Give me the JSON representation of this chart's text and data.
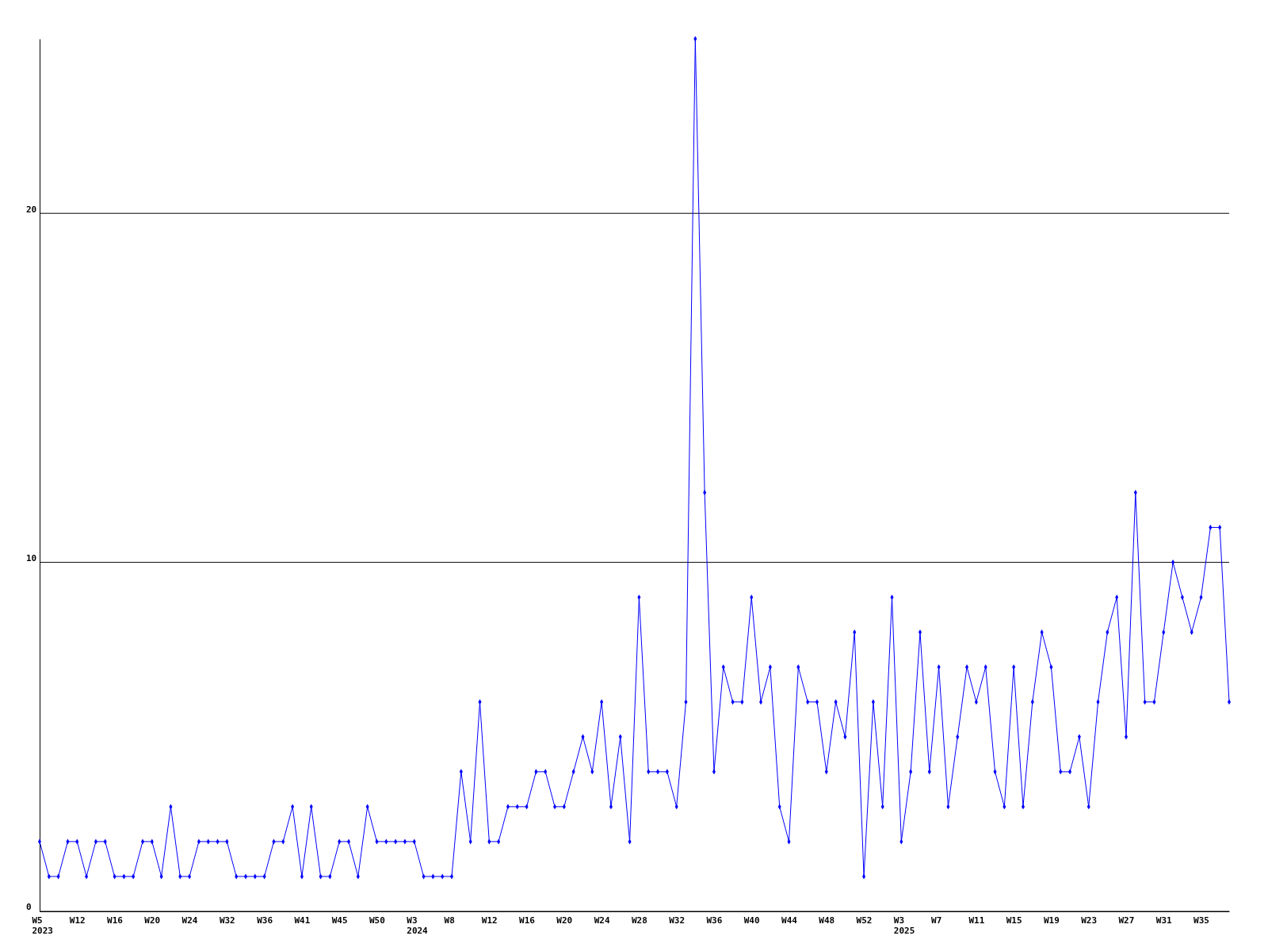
{
  "chart_data": {
    "type": "line",
    "categories": [
      "W5\n2023",
      null,
      null,
      null,
      "W12",
      null,
      null,
      null,
      "W16",
      null,
      null,
      null,
      "W20",
      null,
      null,
      null,
      "W24",
      null,
      null,
      null,
      "W32",
      null,
      null,
      null,
      "W36",
      null,
      null,
      null,
      "W41",
      null,
      null,
      null,
      "W45",
      null,
      null,
      null,
      "W50",
      null,
      null,
      null,
      "W3\n2024",
      null,
      null,
      null,
      "W8",
      null,
      null,
      null,
      "W12",
      null,
      null,
      null,
      "W16",
      null,
      null,
      null,
      "W20",
      null,
      null,
      null,
      "W24",
      null,
      null,
      null,
      "W28",
      null,
      null,
      null,
      "W32",
      null,
      null,
      null,
      "W36",
      null,
      null,
      null,
      "W40",
      null,
      null,
      null,
      "W44",
      null,
      null,
      null,
      "W48",
      null,
      null,
      null,
      "W52",
      null,
      null,
      null,
      "W3\n2025",
      null,
      null,
      null,
      "W7",
      null,
      null,
      null,
      "W11",
      null,
      null,
      null,
      "W15",
      null,
      null,
      null,
      "W19",
      null,
      null,
      null,
      "W23",
      null,
      null,
      null,
      "W27",
      null,
      null,
      null,
      "W31",
      null,
      null,
      null,
      "W35",
      null,
      null,
      null
    ],
    "series": [
      {
        "color": "#0000ff",
        "values": [
          2,
          1,
          1,
          2,
          2,
          1,
          2,
          2,
          1,
          1,
          1,
          2,
          2,
          1,
          3,
          1,
          1,
          2,
          2,
          2,
          2,
          1,
          1,
          1,
          1,
          2,
          2,
          3,
          1,
          3,
          1,
          1,
          2,
          2,
          1,
          3,
          2,
          2,
          2,
          2,
          2,
          1,
          1,
          1,
          1,
          4,
          2,
          6,
          2,
          2,
          3,
          3,
          3,
          4,
          4,
          3,
          3,
          4,
          5,
          4,
          6,
          3,
          5,
          2,
          9,
          4,
          4,
          4,
          3,
          6,
          25,
          12,
          4,
          7,
          6,
          6,
          9,
          6,
          7,
          3,
          2,
          7,
          6,
          6,
          4,
          6,
          5,
          8,
          1,
          6,
          3,
          9,
          2,
          4,
          8,
          4,
          7,
          3,
          5,
          7,
          6,
          7,
          4,
          3,
          7,
          3,
          6,
          8,
          7,
          4,
          4,
          5,
          3,
          6,
          8,
          9,
          5,
          12,
          6,
          6,
          8,
          10,
          9,
          8,
          9,
          11,
          11,
          6
        ]
      }
    ],
    "ylim": [
      0,
      25
    ],
    "yticks": [
      0,
      10,
      20
    ],
    "grid": "y",
    "marker": "diamond",
    "line_style": "solid"
  }
}
